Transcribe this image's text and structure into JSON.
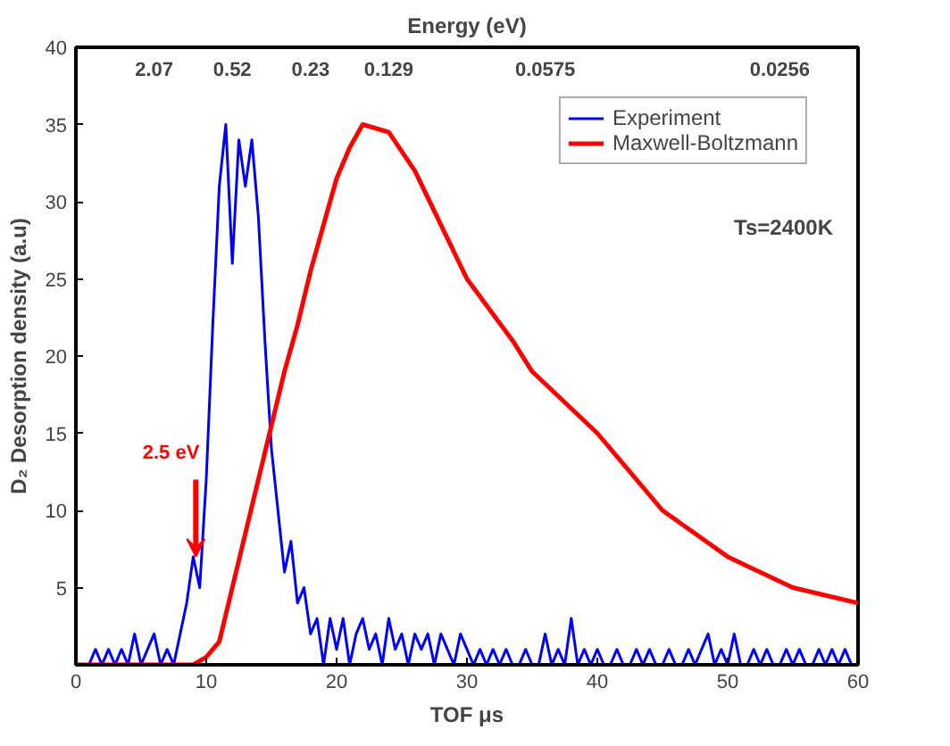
{
  "chart_data": {
    "type": "line",
    "xlabel": "TOF μs",
    "ylabel": "D₂ Desorption density (a.u)",
    "title": "Energy (eV)",
    "xlim": [
      0,
      60
    ],
    "xticks": [
      0,
      10,
      20,
      30,
      40,
      50,
      60
    ],
    "ylim": [
      0,
      40
    ],
    "yticks": [
      {
        "value": 0,
        "label": null
      },
      5,
      10,
      15,
      20,
      25,
      30,
      35,
      40
    ],
    "grid": false,
    "legend": "top right",
    "annotations": [
      "Ts=2400K",
      {
        "text": "2.5 eV",
        "x": 9.2,
        "y": 7
      },
      "2.07",
      "0.52",
      "0.23",
      "0.129",
      "0.0575",
      "0.0256"
    ],
    "series": [
      {
        "name": "Experiment",
        "color": "#0000ff",
        "x": [
          0,
          0.5,
          1,
          1.5,
          2,
          2.5,
          3,
          3.5,
          4,
          4.5,
          5,
          5.5,
          6,
          6.5,
          7,
          7.5,
          8,
          8.5,
          9,
          9.5,
          10,
          10.5,
          11,
          11.5,
          12,
          12.5,
          13,
          13.5,
          14,
          14.5,
          15,
          15.5,
          16,
          16.5,
          17,
          17.5,
          18,
          18.5,
          19,
          19.5,
          20,
          20.5,
          21,
          21.5,
          22,
          22.5,
          23,
          23.5,
          24,
          24.5,
          25,
          25.5,
          26,
          26.5,
          27,
          27.5,
          28,
          28.5,
          29,
          29.5,
          30,
          30.5,
          31,
          31.5,
          32,
          32.5,
          33,
          33.5,
          34,
          34.5,
          35,
          35.5,
          36,
          36.5,
          37,
          37.5,
          38,
          38.5,
          39,
          39.5,
          40,
          40.5,
          41,
          41.5,
          42,
          42.5,
          43,
          43.5,
          44,
          44.5,
          45,
          45.5,
          46,
          46.5,
          47,
          47.5,
          48,
          48.5,
          49,
          49.5,
          50,
          50.5,
          51,
          51.5,
          52,
          52.5,
          53,
          53.5,
          54,
          54.5,
          55,
          55.5,
          56,
          56.5,
          57,
          57.5,
          58,
          58.5,
          59,
          59.5,
          60
        ],
        "values": [
          0,
          0,
          0,
          1,
          0,
          1,
          0,
          1,
          0,
          2,
          0,
          1,
          2,
          0,
          1,
          0,
          2,
          4,
          7,
          5,
          12,
          22,
          31,
          35,
          26,
          34,
          31,
          34,
          29,
          21,
          14,
          10,
          6,
          8,
          4,
          5,
          2,
          3,
          0,
          3,
          1,
          3,
          0,
          2,
          3,
          1,
          2,
          0,
          3,
          1,
          2,
          0,
          2,
          1,
          2,
          0,
          2,
          1,
          0,
          2,
          1,
          0,
          1,
          0,
          1,
          0,
          1,
          0,
          0,
          1,
          0,
          0,
          2,
          0,
          1,
          0,
          3,
          0,
          1,
          0,
          1,
          0,
          0,
          1,
          0,
          0,
          1,
          0,
          1,
          0,
          0,
          1,
          0,
          0,
          1,
          0,
          1,
          2,
          0,
          1,
          0,
          2,
          0,
          0,
          1,
          0,
          1,
          0,
          0,
          1,
          0,
          1,
          0,
          0,
          1,
          0,
          1,
          0,
          1,
          0,
          0
        ]
      },
      {
        "name": "Maxwell-Boltzmann",
        "color": "#ff0000",
        "x": [
          0,
          5,
          9,
          10,
          11,
          12,
          13,
          14,
          15,
          16,
          17,
          18,
          19,
          20,
          21,
          22,
          24,
          26,
          28,
          30,
          33.5,
          35,
          40,
          45,
          50,
          55,
          60
        ],
        "values": [
          0,
          0,
          0,
          0.5,
          1.5,
          5,
          8.5,
          12,
          15.5,
          19,
          22,
          25.5,
          28.5,
          31.5,
          33.5,
          35,
          34.5,
          32,
          28.5,
          25,
          21,
          19,
          15,
          10,
          7,
          5,
          4
        ]
      }
    ]
  }
}
